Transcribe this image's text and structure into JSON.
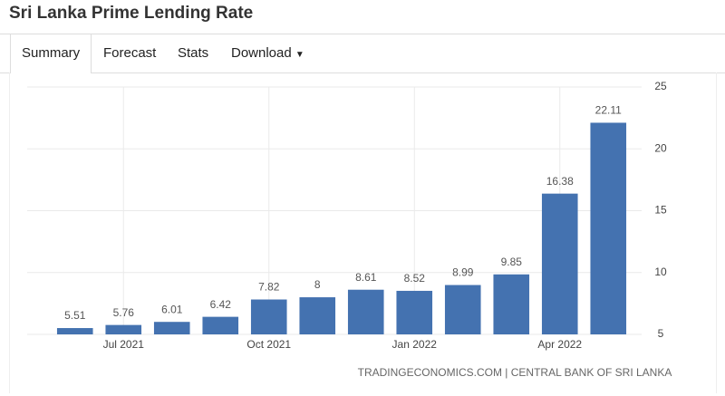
{
  "header": {
    "title": "Sri Lanka Prime Lending Rate"
  },
  "tabs": [
    "Summary",
    "Forecast",
    "Stats",
    "Download"
  ],
  "chart_data": {
    "type": "bar",
    "categories": [
      null,
      "Jul 2021",
      null,
      null,
      "Oct 2021",
      null,
      null,
      "Jan 2022",
      null,
      null,
      "Apr 2022",
      null
    ],
    "values": [
      5.51,
      5.76,
      6.01,
      6.42,
      7.82,
      8,
      8.61,
      8.52,
      8.99,
      9.85,
      16.38,
      22.11
    ],
    "color": "#4472b0",
    "ylim": [
      5,
      25
    ],
    "yticks": [
      5,
      10,
      15,
      20,
      25
    ],
    "grid": true,
    "source": "TRADINGECONOMICS.COM | CENTRAL BANK OF SRI LANKA"
  }
}
